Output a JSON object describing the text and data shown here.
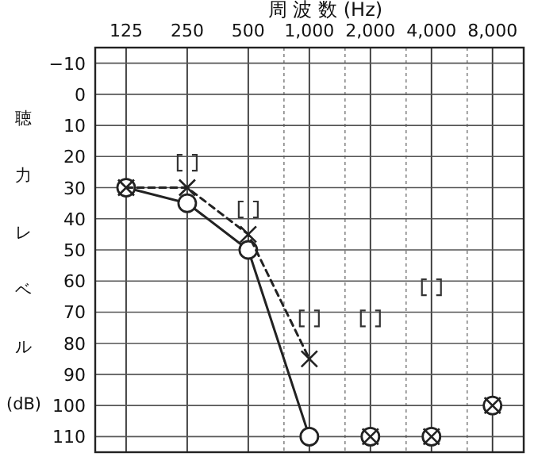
{
  "chart_data": {
    "type": "line",
    "xlabel": "周 波 数 (Hz)",
    "ylabel": "聴力レベル(dB)",
    "x": [
      125,
      250,
      500,
      1000,
      2000,
      4000,
      8000
    ],
    "log": "x",
    "xlim": [
      88,
      11400
    ],
    "xticks": [
      125,
      250,
      500,
      {
        "value": 750,
        "label": null
      },
      {
        "value": 1000,
        "label": "1,000"
      },
      {
        "value": 1500,
        "label": null
      },
      {
        "value": 2000,
        "label": "2,000"
      },
      {
        "value": 3000,
        "label": null
      },
      {
        "value": 4000,
        "label": "4,000"
      },
      {
        "value": 6000,
        "label": null
      },
      {
        "value": 8000,
        "label": "8,000"
      }
    ],
    "ylim": [
      115,
      -15
    ],
    "yticks": [
      {
        "value": -10,
        "label": "−10"
      },
      0,
      10,
      20,
      30,
      40,
      50,
      60,
      70,
      80,
      90,
      100,
      110
    ],
    "grid": true,
    "series": [
      {
        "type": "line",
        "color": "#222222",
        "marker": "circle",
        "line_style": "solid",
        "values": [
          30,
          35,
          50,
          110,
          null,
          null,
          null
        ]
      },
      {
        "type": "line",
        "color": "#222222",
        "marker": "cross",
        "line_style": "dashed",
        "values": [
          30,
          30,
          45,
          85,
          null,
          null,
          null
        ]
      },
      {
        "type": "scatter",
        "color": "#222222",
        "marker": "circle",
        "values": [
          null,
          null,
          null,
          null,
          110,
          110,
          100
        ]
      },
      {
        "type": "scatter",
        "color": "#222222",
        "marker": "cross",
        "values": [
          null,
          null,
          null,
          null,
          110,
          110,
          100
        ]
      },
      {
        "type": "scatter",
        "color": "#333333",
        "values": [
          null,
          22,
          37,
          72,
          72,
          62,
          null
        ]
      }
    ]
  }
}
